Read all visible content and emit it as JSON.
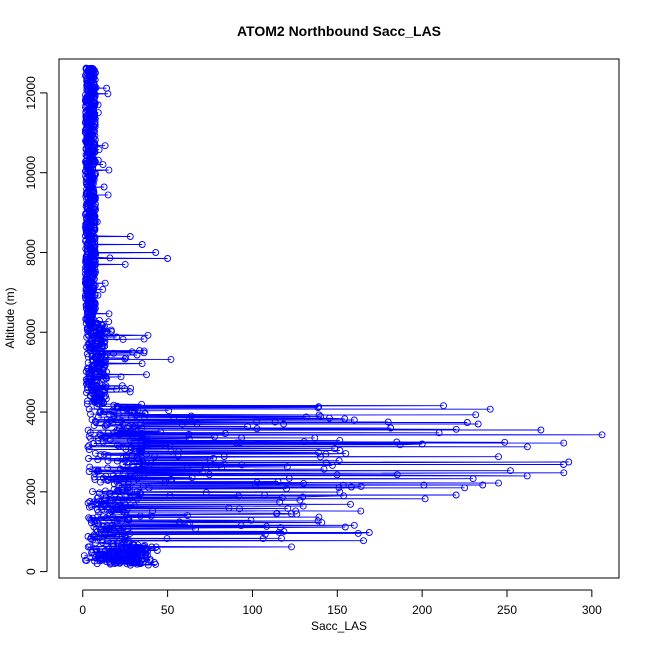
{
  "chart_data": {
    "type": "scatter",
    "title": "ATOM2 Northbound Sacc_LAS",
    "xlabel": "Sacc_LAS",
    "ylabel": "Altitude (m)",
    "xlim": [
      -14,
      316
    ],
    "ylim": [
      -160,
      12850
    ],
    "x_ticks": [
      0,
      50,
      100,
      150,
      200,
      250,
      300
    ],
    "y_ticks": [
      0,
      2000,
      4000,
      6000,
      8000,
      10000,
      12000
    ],
    "x_tick_labels": [
      "0",
      "50",
      "100",
      "150",
      "200",
      "250",
      "300"
    ],
    "y_tick_labels": [
      "0",
      "2000",
      "4000",
      "6000",
      "8000",
      "10000",
      "12000"
    ],
    "grid": false,
    "legend": "none",
    "series_color": "#0000ff",
    "marker": "open-circle",
    "lines_connect_points": true,
    "highlight_points": [
      {
        "x": 306,
        "y": 3430
      },
      {
        "x": 270,
        "y": 3550
      },
      {
        "x": 262,
        "y": 3130
      },
      {
        "x": 252,
        "y": 2530
      },
      {
        "x": 245,
        "y": 2880
      },
      {
        "x": 233,
        "y": 3700
      },
      {
        "x": 230,
        "y": 2330
      },
      {
        "x": 225,
        "y": 2100
      },
      {
        "x": 220,
        "y": 1920
      },
      {
        "x": 210,
        "y": 3480
      },
      {
        "x": 200,
        "y": 3200
      },
      {
        "x": 185,
        "y": 3250
      },
      {
        "x": 180,
        "y": 3750
      },
      {
        "x": 160,
        "y": 3800
      },
      {
        "x": 160,
        "y": 1160
      },
      {
        "x": 123,
        "y": 620
      },
      {
        "x": 52,
        "y": 5320
      },
      {
        "x": 50,
        "y": 7850
      },
      {
        "x": 43,
        "y": 8000
      },
      {
        "x": 35,
        "y": 8200
      },
      {
        "x": 32,
        "y": 5430
      },
      {
        "x": 28,
        "y": 8400
      },
      {
        "x": 25,
        "y": 7700
      },
      {
        "x": 20,
        "y": 5880
      }
    ]
  }
}
